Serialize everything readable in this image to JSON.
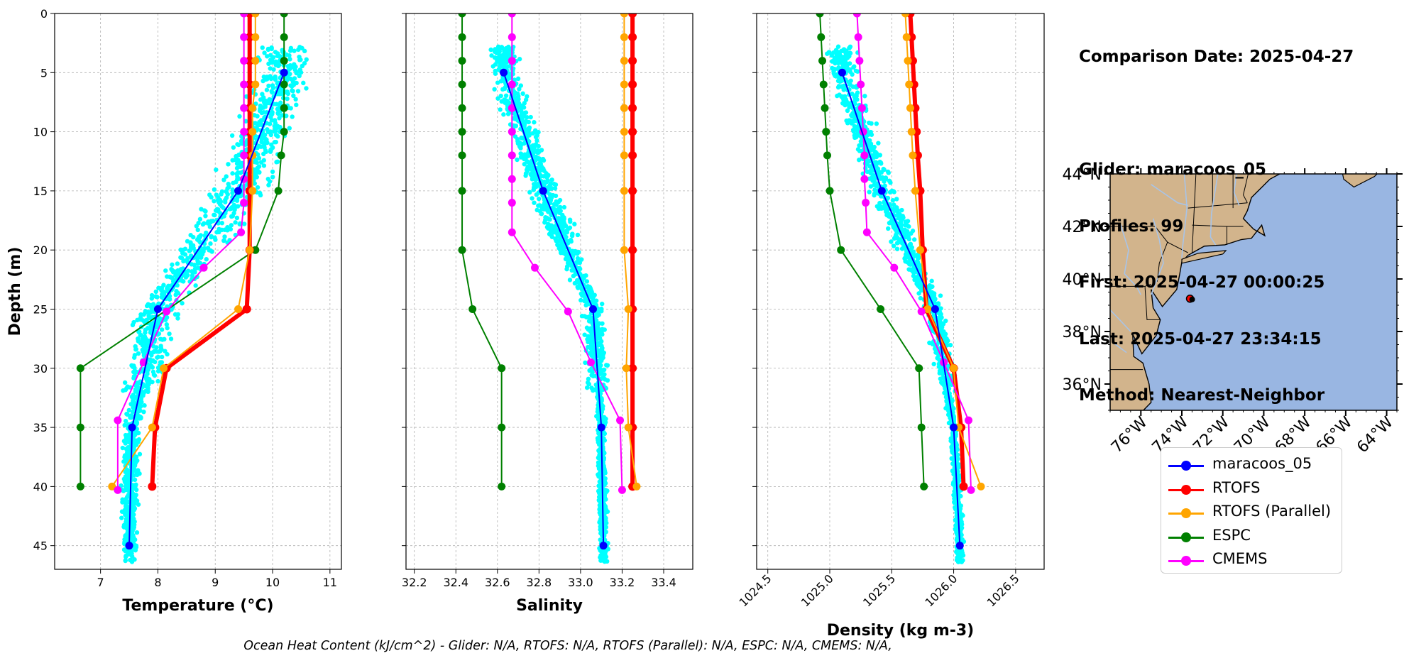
{
  "info": {
    "comparison_date": "Comparison Date: 2025-04-27",
    "glider": "Glider: maracoos_05",
    "profiles": "Profiles: 99",
    "first": "First: 2025-04-27 00:00:25",
    "last": "Last: 2025-04-27 23:34:15",
    "method": "Method: Nearest-Neighbor"
  },
  "footer": "Ocean Heat Content (kJ/cm^2) - Glider: N/A,  RTOFS: N/A,  RTOFS (Parallel): N/A,  ESPC: N/A,  CMEMS: N/A,",
  "colors": {
    "maracoos_05": "#0000ff",
    "RTOFS": "#ff0000",
    "RTOFS (Parallel)": "#ffa500",
    "ESPC": "#008000",
    "CMEMS": "#ff00ff",
    "glider_raw": "#00ffff",
    "map_land": "#d2b48c",
    "map_ocean": "#99b6e2",
    "map_rivers": "#a8c4e8"
  },
  "legend": [
    {
      "label": "maracoos_05",
      "color": "#0000ff"
    },
    {
      "label": "RTOFS",
      "color": "#ff0000"
    },
    {
      "label": "RTOFS (Parallel)",
      "color": "#ffa500"
    },
    {
      "label": "ESPC",
      "color": "#008000"
    },
    {
      "label": "CMEMS",
      "color": "#ff00ff"
    }
  ],
  "chart_data": [
    {
      "type": "line",
      "xlabel": "Temperature (°C)",
      "ylabel": "Depth (m)",
      "xlim": [
        6.2,
        11.2
      ],
      "ylim": [
        47,
        0
      ],
      "xticks": [
        7,
        8,
        9,
        10,
        11
      ],
      "yticks": [
        0,
        5,
        10,
        15,
        20,
        25,
        30,
        35,
        40,
        45
      ],
      "grid": true,
      "series": [
        {
          "name": "maracoos_05",
          "depth": [
            5,
            15,
            25,
            35,
            45
          ],
          "values": [
            10.2,
            9.4,
            8.0,
            7.55,
            7.5
          ]
        },
        {
          "name": "RTOFS",
          "depth": [
            0,
            2,
            4,
            6,
            8,
            10,
            12,
            15,
            20,
            25,
            30,
            35,
            40
          ],
          "values": [
            9.6,
            9.6,
            9.6,
            9.6,
            9.6,
            9.6,
            9.6,
            9.6,
            9.6,
            9.55,
            8.15,
            7.95,
            7.9
          ]
        },
        {
          "name": "RTOFS (Parallel)",
          "depth": [
            0,
            2,
            4,
            6,
            8,
            10,
            12,
            15,
            20,
            25,
            30,
            35,
            40
          ],
          "values": [
            9.7,
            9.7,
            9.7,
            9.7,
            9.65,
            9.65,
            9.65,
            9.65,
            9.6,
            9.4,
            8.1,
            7.9,
            7.2
          ]
        },
        {
          "name": "ESPC",
          "depth": [
            0,
            2,
            4,
            6,
            8,
            10,
            12,
            15,
            20,
            30,
            35,
            40
          ],
          "values": [
            10.2,
            10.2,
            10.2,
            10.2,
            10.2,
            10.2,
            10.15,
            10.1,
            9.7,
            6.65,
            6.65,
            6.65
          ]
        },
        {
          "name": "CMEMS",
          "depth": [
            0,
            2,
            4,
            6,
            8,
            10,
            12,
            14,
            16,
            18.5,
            21.5,
            25.2,
            29.5,
            34.4,
            40.3
          ],
          "values": [
            9.5,
            9.5,
            9.5,
            9.5,
            9.5,
            9.5,
            9.5,
            9.5,
            9.5,
            9.45,
            8.8,
            8.15,
            7.75,
            7.3,
            7.3
          ]
        }
      ]
    },
    {
      "type": "line",
      "xlabel": "Salinity",
      "ylabel": "",
      "xlim": [
        32.16,
        33.54
      ],
      "ylim": [
        47,
        0
      ],
      "xticks": [
        32.2,
        32.4,
        32.6,
        32.8,
        33.0,
        33.2,
        33.4
      ],
      "yticks": [
        0,
        5,
        10,
        15,
        20,
        25,
        30,
        35,
        40,
        45
      ],
      "grid": true,
      "series": [
        {
          "name": "maracoos_05",
          "depth": [
            5,
            15,
            25,
            35,
            45
          ],
          "values": [
            32.63,
            32.82,
            33.06,
            33.1,
            33.11
          ]
        },
        {
          "name": "RTOFS",
          "depth": [
            0,
            2,
            4,
            6,
            8,
            10,
            12,
            15,
            20,
            25,
            30,
            35,
            40
          ],
          "values": [
            33.25,
            33.25,
            33.25,
            33.25,
            33.25,
            33.25,
            33.25,
            33.25,
            33.25,
            33.25,
            33.25,
            33.25,
            33.25
          ]
        },
        {
          "name": "RTOFS (Parallel)",
          "depth": [
            0,
            2,
            4,
            6,
            8,
            10,
            12,
            15,
            20,
            25,
            30,
            35,
            40
          ],
          "values": [
            33.21,
            33.21,
            33.21,
            33.21,
            33.21,
            33.21,
            33.21,
            33.21,
            33.21,
            33.23,
            33.22,
            33.23,
            33.27
          ]
        },
        {
          "name": "ESPC",
          "depth": [
            0,
            2,
            4,
            6,
            8,
            10,
            12,
            15,
            20,
            25,
            30,
            35,
            40
          ],
          "values": [
            32.43,
            32.43,
            32.43,
            32.43,
            32.43,
            32.43,
            32.43,
            32.43,
            32.43,
            32.48,
            32.62,
            32.62,
            32.62
          ]
        },
        {
          "name": "CMEMS",
          "depth": [
            0,
            2,
            4,
            6,
            8,
            10,
            12,
            14,
            16,
            18.5,
            21.5,
            25.2,
            29.5,
            34.4,
            40.3
          ],
          "values": [
            32.67,
            32.67,
            32.67,
            32.67,
            32.67,
            32.67,
            32.67,
            32.67,
            32.67,
            32.67,
            32.78,
            32.94,
            33.05,
            33.19,
            33.2
          ]
        }
      ]
    },
    {
      "type": "line",
      "xlabel": "Density (kg m-3)",
      "ylabel": "",
      "xlim": [
        1024.41,
        1026.73
      ],
      "ylim": [
        47,
        0
      ],
      "xticks": [
        1024.5,
        1025.0,
        1025.5,
        1026.0,
        1026.5
      ],
      "yticks": [
        0,
        5,
        10,
        15,
        20,
        25,
        30,
        35,
        40,
        45
      ],
      "grid": true,
      "series": [
        {
          "name": "maracoos_05",
          "depth": [
            5,
            15,
            25,
            35,
            45
          ],
          "values": [
            1025.1,
            1025.42,
            1025.85,
            1026.0,
            1026.05
          ]
        },
        {
          "name": "RTOFS",
          "depth": [
            0,
            2,
            4,
            6,
            8,
            10,
            12,
            15,
            20,
            25,
            30,
            35,
            40
          ],
          "values": [
            1025.65,
            1025.66,
            1025.67,
            1025.68,
            1025.69,
            1025.7,
            1025.71,
            1025.73,
            1025.75,
            1025.78,
            1026.0,
            1026.06,
            1026.08
          ]
        },
        {
          "name": "RTOFS (Parallel)",
          "depth": [
            0,
            2,
            4,
            6,
            8,
            10,
            12,
            15,
            20,
            25,
            30,
            35,
            40
          ],
          "values": [
            1025.61,
            1025.62,
            1025.63,
            1025.64,
            1025.65,
            1025.66,
            1025.67,
            1025.69,
            1025.73,
            1025.79,
            1026.0,
            1026.04,
            1026.22
          ]
        },
        {
          "name": "ESPC",
          "depth": [
            0,
            2,
            4,
            6,
            8,
            10,
            12,
            15,
            20,
            25,
            30,
            35,
            40
          ],
          "values": [
            1024.92,
            1024.93,
            1024.94,
            1024.95,
            1024.96,
            1024.97,
            1024.98,
            1025.0,
            1025.09,
            1025.41,
            1025.72,
            1025.74,
            1025.76
          ]
        },
        {
          "name": "CMEMS",
          "depth": [
            0,
            2,
            4,
            6,
            8,
            10,
            12,
            14,
            16,
            18.5,
            21.5,
            25.2,
            29.5,
            34.4,
            40.3
          ],
          "values": [
            1025.22,
            1025.23,
            1025.24,
            1025.25,
            1025.26,
            1025.27,
            1025.28,
            1025.28,
            1025.29,
            1025.3,
            1025.52,
            1025.74,
            1025.92,
            1026.12,
            1026.14
          ]
        }
      ]
    },
    {
      "type": "map",
      "lon_range": [
        -77.5,
        -63.5
      ],
      "lat_range": [
        35,
        44
      ],
      "xticks": [
        -76,
        -74,
        -72,
        -70,
        -68,
        -66,
        -64
      ],
      "xtick_labels": [
        "76°W",
        "74°W",
        "72°W",
        "70°W",
        "68°W",
        "66°W",
        "64°W"
      ],
      "yticks": [
        36,
        38,
        40,
        42,
        44
      ],
      "ytick_labels": [
        "36°N",
        "38°N",
        "40°N",
        "42°N",
        "44°N"
      ],
      "glider_position": {
        "lon": -73.6,
        "lat": 39.25
      }
    }
  ]
}
